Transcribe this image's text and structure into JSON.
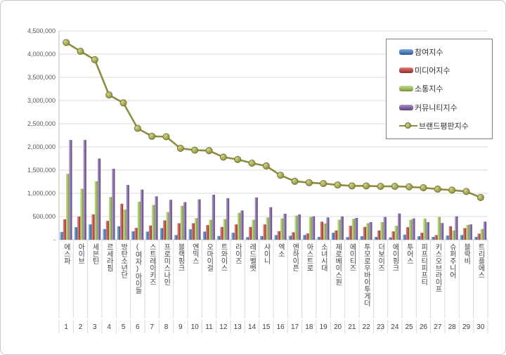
{
  "chart_data": {
    "type": "bar+line",
    "title": "",
    "legend_position": "top-right",
    "grid": true,
    "y_axis": {
      "min": 0,
      "max": 4500000,
      "step": 500000,
      "zero_label": "-",
      "tick_labels": [
        "-",
        "500,000",
        "1,000,000",
        "1,500,000",
        "2,000,000",
        "2,500,000",
        "3,000,000",
        "3,500,000",
        "4,000,000",
        "4,500,000"
      ]
    },
    "categories": [
      "에스파",
      "아이브",
      "세븐틴",
      "르세라핌",
      "방탄소년단",
      "(여자)아이들",
      "스트레이키즈",
      "프로미스나인",
      "블랙핑크",
      "엔믹스",
      "오마이걸",
      "트와이스",
      "라이즈",
      "레드벨벳",
      "샤이니",
      "엑소",
      "엔하이픈",
      "아스트로",
      "소녀시대",
      "제로베이스원",
      "에이티즈",
      "투모로우바이투게더",
      "더보이즈",
      "에이핑크",
      "투어스",
      "피프티피프티",
      "키스오브라이프",
      "슈퍼주니어",
      "블락비",
      "트리플에스"
    ],
    "ranks": [
      "1",
      "2",
      "3",
      "4",
      "5",
      "6",
      "7",
      "8",
      "9",
      "10",
      "11",
      "12",
      "13",
      "14",
      "15",
      "16",
      "17",
      "18",
      "19",
      "20",
      "21",
      "22",
      "23",
      "24",
      "25",
      "26",
      "27",
      "28",
      "29",
      "30"
    ],
    "series": [
      {
        "id": "participation",
        "name": "참여지수",
        "type": "bar",
        "color": "#4E80BC",
        "color_light": "#7FA8D9",
        "color_dark": "#2F5A8B",
        "values": [
          165000,
          270000,
          330000,
          230000,
          290000,
          180000,
          175000,
          250000,
          100000,
          225000,
          175000,
          80000,
          150000,
          55000,
          80000,
          100000,
          85000,
          100000,
          60000,
          150000,
          55000,
          75000,
          60000,
          50000,
          110000,
          75000,
          60000,
          90000,
          100000,
          60000
        ]
      },
      {
        "id": "media",
        "name": "미디어지수",
        "type": "bar",
        "color": "#BE4B48",
        "color_light": "#D98683",
        "color_dark": "#8E3432",
        "values": [
          440000,
          500000,
          545000,
          405000,
          775000,
          255000,
          305000,
          415000,
          355000,
          355000,
          315000,
          275000,
          330000,
          275000,
          330000,
          185000,
          160000,
          135000,
          390000,
          200000,
          300000,
          275000,
          200000,
          180000,
          270000,
          150000,
          100000,
          290000,
          250000,
          130000
        ]
      },
      {
        "id": "communication",
        "name": "소통지수",
        "type": "bar",
        "color": "#9ABA58",
        "color_light": "#C2D893",
        "color_dark": "#71903B",
        "values": [
          1420000,
          1100000,
          1260000,
          920000,
          650000,
          820000,
          750000,
          595000,
          730000,
          465000,
          430000,
          445000,
          580000,
          430000,
          480000,
          460000,
          520000,
          490000,
          350000,
          430000,
          450000,
          355000,
          380000,
          300000,
          430000,
          455000,
          490000,
          200000,
          320000,
          230000
        ]
      },
      {
        "id": "community",
        "name": "커뮤니티지수",
        "type": "bar",
        "color": "#7F63A1",
        "color_light": "#A893C4",
        "color_dark": "#5C4677",
        "values": [
          2150000,
          2150000,
          1750000,
          1530000,
          1180000,
          1080000,
          935000,
          860000,
          810000,
          870000,
          970000,
          895000,
          630000,
          910000,
          700000,
          560000,
          545000,
          505000,
          480000,
          500000,
          470000,
          380000,
          490000,
          565000,
          460000,
          380000,
          360000,
          505000,
          330000,
          390000
        ]
      },
      {
        "id": "brand-reputation",
        "name": "브랜드평판지수",
        "type": "line",
        "color": "#8C8D3F",
        "marker_fill": "#A8A955",
        "marker_light": "#D2D394",
        "marker_dark": "#8A8B3C",
        "marker_edge": "#6B6C2F",
        "values": [
          4250000,
          4060000,
          3880000,
          3120000,
          2950000,
          2400000,
          2230000,
          2220000,
          1970000,
          1930000,
          1920000,
          1780000,
          1730000,
          1650000,
          1590000,
          1390000,
          1260000,
          1230000,
          1210000,
          1180000,
          1160000,
          1160000,
          1150000,
          1150000,
          1140000,
          1120000,
          1090000,
          1070000,
          1040000,
          910000
        ]
      }
    ],
    "colors": {
      "gridline": "#D9D9D9",
      "axis_line": "#BFBFBF",
      "tick_label": "#595959",
      "category_label": "#404040"
    }
  }
}
